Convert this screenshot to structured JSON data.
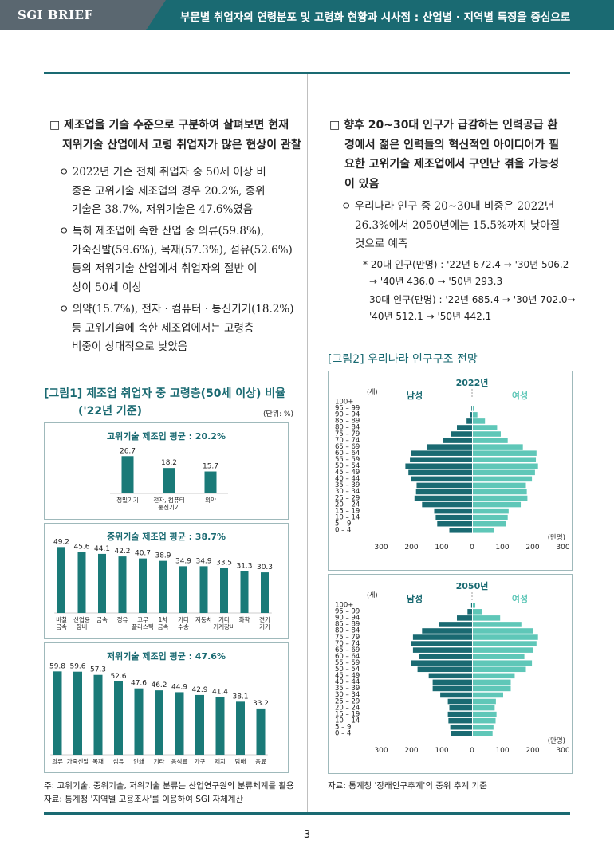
{
  "header": {
    "tag": "SGI BRIEF",
    "title": "부문별 취업자의 연령분포 및 고령화 현황과 시사점 : 산업별 · 지역별 특징을 중심으로"
  },
  "left_text": {
    "h1_line1": "□ 제조업을 기술 수준으로 구분하여 살펴보면 현재",
    "h1_line2": "저위기술 산업에서 고령 취업자가 많은 현상이 관찰",
    "b1_line1": "ㅇ 2022년 기준 전체 취업자 중 50세 이상 비",
    "b1_line2": "중은 고위기술 제조업의 경우 20.2%, 중위",
    "b1_line3": "기술은 38.7%, 저위기술은 47.6%였음",
    "b2_line1": "ㅇ 특히 제조업에 속한 산업 중 의류(59.8%),",
    "b2_line2": "가죽신발(59.6%), 목재(57.3%), 섬유(52.6%)",
    "b2_line3": "등의 저위기술 산업에서 취업자의 절반 이",
    "b2_line4": "상이 50세 이상",
    "b3_line1": "ㅇ 의약(15.7%), 전자 · 컴퓨터 · 통신기기(18.2%)",
    "b3_line2": "등 고위기술에 속한 제조업에서는 고령층",
    "b3_line3": "비중이 상대적으로 낮았음"
  },
  "right_text": {
    "h1_line1": "□ 향후 20~30대 인구가 급감하는 인력공급 환",
    "h1_line2": "경에서 젊은 인력들의 혁신적인 아이디어가 필",
    "h1_line3": "요한 고위기술 제조업에서 구인난 겪을 가능성",
    "h1_line4": "이 있음",
    "b1_line1": "ㅇ 우리나라 인구 중 20~30대 비중은 2022년",
    "b1_line2": "26.3%에서 2050년에는 15.5%까지 낮아질",
    "b1_line3": "것으로 예측",
    "r1_line1": "* 20대 인구(만명) : '22년 672.4 → '30년 506.2",
    "r1_line2": "→ '40년 436.0 → '50년 293.3",
    "r2_line1": "30대 인구(만명) : '22년 685.4 → '30년 702.0→",
    "r2_line2": "'40년 512.1 → '50년  442.1"
  },
  "fig1": {
    "title_line1": "[그림1] 제조업 취업자 중 고령층(50세 이상) 비율",
    "title_line2": "('22년 기준)",
    "unit": "(단위: %)",
    "note1": "주: 고위기술, 중위기술, 저위기술 분류는 산업연구원의 분류체계를 활용",
    "note2": "자료: 통계청 '지역별 고용조사'를 이용하여 SGI 자체계산"
  },
  "fig2": {
    "title": "[그림2] 우리나라 인구구조 전망",
    "note": "자료: 통계청 '장래인구추계'의 중위 추계 기준"
  },
  "page_number": "– 3 –",
  "chart_data": [
    {
      "type": "bar",
      "title": "고위기술 제조업 평균 : 20.2%",
      "categories": [
        [
          "정밀기기"
        ],
        [
          "전자, 컴퓨터",
          "통신기기"
        ],
        [
          "의약"
        ]
      ],
      "values": [
        26.7,
        18.2,
        15.7
      ],
      "value_labels": [
        "26.7",
        "18.2",
        "15.7"
      ],
      "bar_color": "#1a7a78"
    },
    {
      "type": "bar",
      "title": "중위기술 제조업 평균 : 38.7%",
      "categories": [
        [
          "비철",
          "금속"
        ],
        [
          "산업용",
          "장비"
        ],
        [
          "금속"
        ],
        [
          "정유"
        ],
        [
          "고무",
          "플라스틱"
        ],
        [
          "1차",
          "금속"
        ],
        [
          "기타",
          "수송"
        ],
        [
          "자동차"
        ],
        [
          "기타",
          "기계장비"
        ],
        [
          "화학"
        ],
        [
          "전기",
          "기기"
        ]
      ],
      "values": [
        49.2,
        45.6,
        44.1,
        42.2,
        40.7,
        38.9,
        34.9,
        34.9,
        33.5,
        31.3,
        30.3
      ],
      "value_labels": [
        "49.2",
        "45.6",
        "44.1",
        "42.2",
        "40.7",
        "38.9",
        "34.9",
        "34.9",
        "33.5",
        "31.3",
        "30.3"
      ],
      "bar_color": "#1a7a78"
    },
    {
      "type": "bar",
      "title": "저위기술 제조업 평균 : 47.6%",
      "categories": [
        [
          "의류"
        ],
        [
          "가죽신발"
        ],
        [
          "목재"
        ],
        [
          "섬유"
        ],
        [
          "인쇄"
        ],
        [
          "기타"
        ],
        [
          "음식료"
        ],
        [
          "가구"
        ],
        [
          "제지"
        ],
        [
          "담배"
        ],
        [
          "음료"
        ]
      ],
      "values": [
        59.8,
        59.6,
        57.3,
        52.6,
        47.6,
        46.2,
        44.9,
        42.9,
        41.4,
        38.1,
        33.2
      ],
      "value_labels": [
        "59.8",
        "59.6",
        "57.3",
        "52.6",
        "47.6",
        "46.2",
        "44.9",
        "42.9",
        "41.4",
        "38.1",
        "33.2"
      ],
      "bar_color": "#1a7a78"
    },
    {
      "type": "bar",
      "title": "2022년",
      "orientation": "population-pyramid",
      "age_axis_label": "(세)",
      "age_groups": [
        "0 – 4",
        "5 – 9",
        "10 – 14",
        "15 – 19",
        "20 – 24",
        "25 – 29",
        "30 – 34",
        "35 – 39",
        "40 – 44",
        "45 – 49",
        "50 – 54",
        "55 – 59",
        "60 – 64",
        "65 – 69",
        "70 – 74",
        "75 – 79",
        "80 – 84",
        "85 – 89",
        "90 – 94",
        "95 – 99",
        "100+"
      ],
      "series": [
        {
          "name": "남성",
          "color": "#1a6a72",
          "values": [
            75,
            115,
            120,
            125,
            165,
            190,
            185,
            183,
            202,
            210,
            220,
            205,
            202,
            150,
            97,
            70,
            50,
            18,
            6,
            2,
            0
          ]
        },
        {
          "name": "여성",
          "color": "#5fc7b8",
          "values": [
            70,
            108,
            115,
            118,
            158,
            180,
            178,
            175,
            195,
            205,
            215,
            208,
            210,
            165,
            115,
            92,
            80,
            40,
            15,
            3,
            0
          ]
        }
      ],
      "xlim": [
        -300,
        300
      ],
      "x_ticks": [
        "300",
        "200",
        "100",
        "0",
        "100",
        "200",
        "300"
      ],
      "x_unit": "(만명)"
    },
    {
      "type": "bar",
      "title": "2050년",
      "orientation": "population-pyramid",
      "age_axis_label": "(세)",
      "age_groups": [
        "0 – 4",
        "5 – 9",
        "10 – 14",
        "15 – 19",
        "20 – 24",
        "25 – 29",
        "30 – 34",
        "35 – 39",
        "40 – 44",
        "45 – 49",
        "50 – 54",
        "55 – 59",
        "60 – 64",
        "65 – 69",
        "70 – 74",
        "75 – 79",
        "80 – 84",
        "85 – 89",
        "90 – 94",
        "95 – 99",
        "100+"
      ],
      "series": [
        {
          "name": "남성",
          "color": "#1a6a72",
          "values": [
            70,
            72,
            78,
            80,
            75,
            80,
            105,
            130,
            130,
            143,
            180,
            200,
            175,
            195,
            200,
            195,
            165,
            110,
            50,
            15,
            3
          ]
        },
        {
          "name": "여성",
          "color": "#5fc7b8",
          "values": [
            65,
            68,
            75,
            78,
            72,
            76,
            100,
            125,
            125,
            138,
            175,
            195,
            170,
            200,
            210,
            215,
            200,
            160,
            90,
            30,
            8
          ]
        }
      ],
      "xlim": [
        -300,
        300
      ],
      "x_ticks": [
        "300",
        "200",
        "100",
        "0",
        "100",
        "200",
        "300"
      ],
      "x_unit": "(만명)"
    }
  ]
}
